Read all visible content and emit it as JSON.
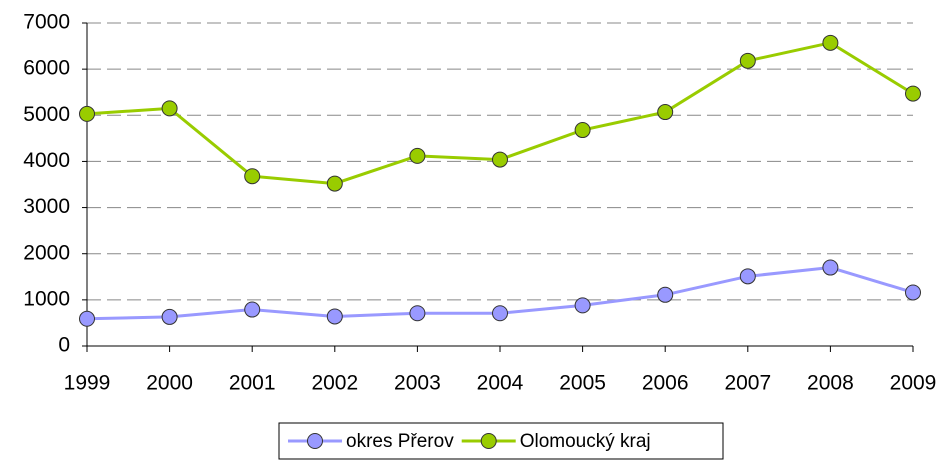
{
  "chart_data": {
    "type": "line",
    "categories": [
      "1999",
      "2000",
      "2001",
      "2002",
      "2003",
      "2004",
      "2005",
      "2006",
      "2007",
      "2008",
      "2009"
    ],
    "series": [
      {
        "name": "okres Přerov",
        "color": "#9999ff",
        "values": [
          590,
          630,
          790,
          640,
          710,
          710,
          880,
          1110,
          1510,
          1700,
          1160
        ]
      },
      {
        "name": "Olomoucký kraj",
        "color": "#99cc00",
        "values": [
          5030,
          5150,
          3680,
          3520,
          4120,
          4040,
          4680,
          5070,
          6180,
          6570,
          5470
        ]
      }
    ],
    "ylim": [
      0,
      7000
    ],
    "yticks": [
      0,
      1000,
      2000,
      3000,
      4000,
      5000,
      6000,
      7000
    ],
    "grid": true
  }
}
